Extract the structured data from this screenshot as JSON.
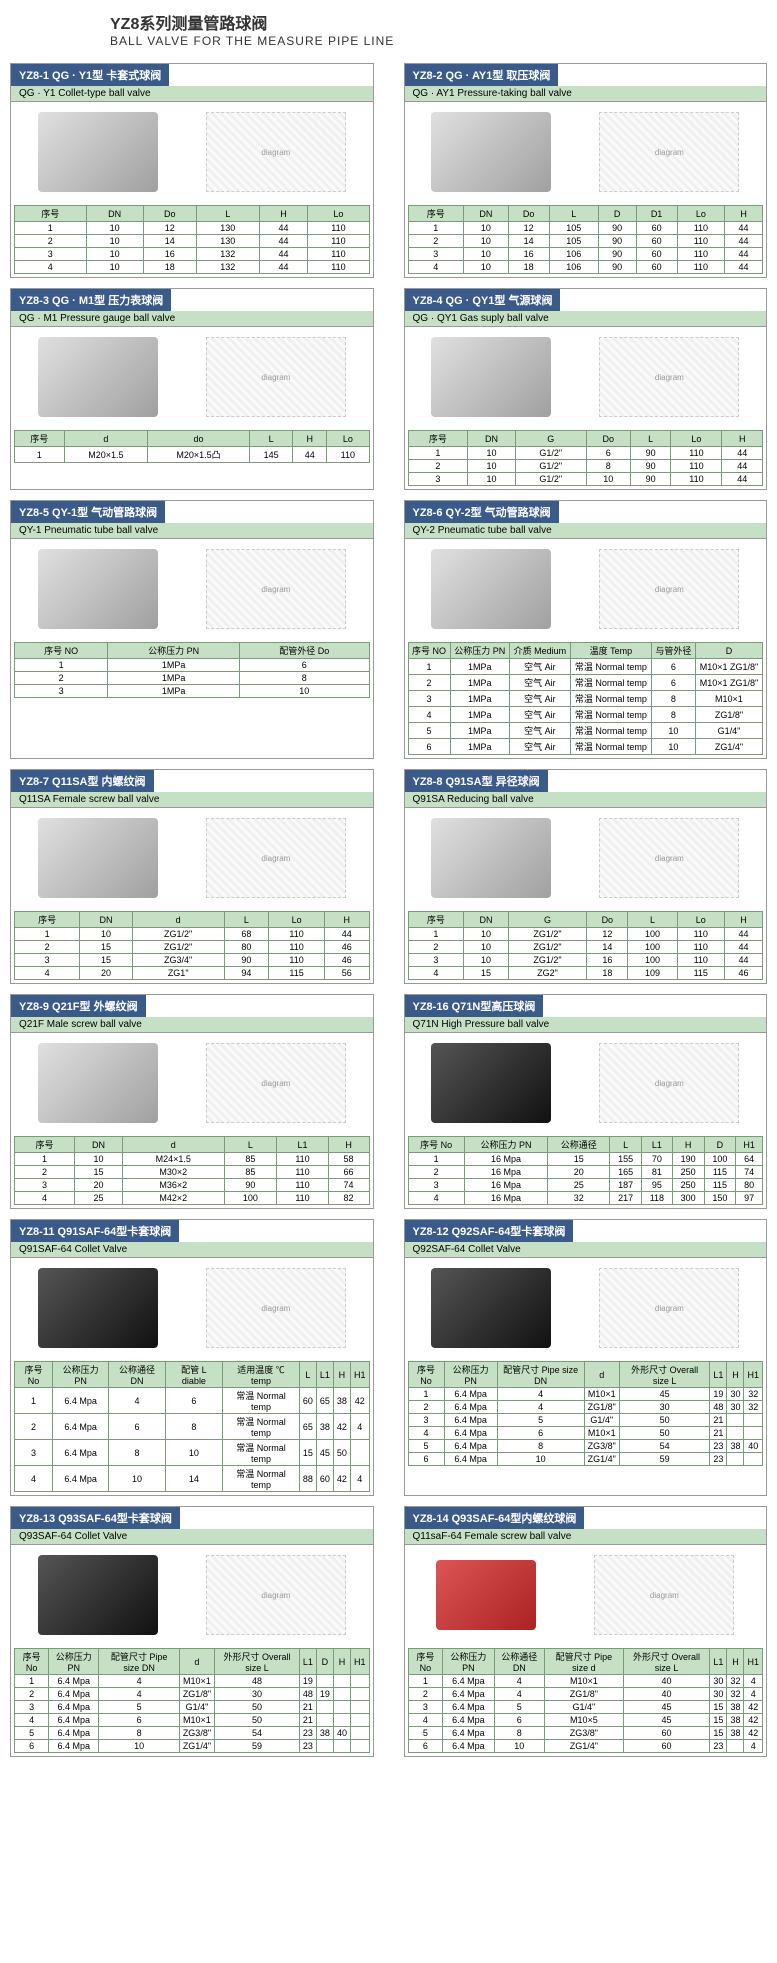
{
  "title": {
    "cn": "YZ8系列测量管路球阀",
    "en": "BALL VALVE FOR THE MEASURE PIPE LINE"
  },
  "items": [
    {
      "header": "YZ8-1 QG · Y1型 卡套式球阀",
      "subtitle": "QG · Y1 Collet-type ball valve",
      "photo_style": "",
      "table": {
        "headers": [
          "序号",
          "DN",
          "Do",
          "L",
          "H",
          "Lo"
        ],
        "rows": [
          [
            "1",
            "10",
            "12",
            "130",
            "44",
            "110"
          ],
          [
            "2",
            "10",
            "14",
            "130",
            "44",
            "110"
          ],
          [
            "3",
            "10",
            "16",
            "132",
            "44",
            "110"
          ],
          [
            "4",
            "10",
            "18",
            "132",
            "44",
            "110"
          ]
        ]
      }
    },
    {
      "header": "YZ8-2 QG · AY1型 取压球阀",
      "subtitle": "QG · AY1 Pressure-taking ball valve",
      "photo_style": "",
      "table": {
        "headers": [
          "序号",
          "DN",
          "Do",
          "L",
          "D",
          "D1",
          "Lo",
          "H"
        ],
        "rows": [
          [
            "1",
            "10",
            "12",
            "105",
            "90",
            "60",
            "110",
            "44"
          ],
          [
            "2",
            "10",
            "14",
            "105",
            "90",
            "60",
            "110",
            "44"
          ],
          [
            "3",
            "10",
            "16",
            "106",
            "90",
            "60",
            "110",
            "44"
          ],
          [
            "4",
            "10",
            "18",
            "106",
            "90",
            "60",
            "110",
            "44"
          ]
        ]
      }
    },
    {
      "header": "YZ8-3 QG · M1型 压力表球阀",
      "subtitle": "QG · M1 Pressure gauge ball valve",
      "photo_style": "",
      "table": {
        "headers": [
          "序号",
          "d",
          "do",
          "L",
          "H",
          "Lo"
        ],
        "rows": [
          [
            "1",
            "M20×1.5",
            "M20×1.5凸",
            "145",
            "44",
            "110"
          ]
        ]
      }
    },
    {
      "header": "YZ8-4 QG · QY1型 气源球阀",
      "subtitle": "QG · QY1 Gas suply ball valve",
      "photo_style": "",
      "table": {
        "headers": [
          "序号",
          "DN",
          "G",
          "Do",
          "L",
          "Lo",
          "H"
        ],
        "rows": [
          [
            "1",
            "10",
            "G1/2\"",
            "6",
            "90",
            "110",
            "44"
          ],
          [
            "2",
            "10",
            "G1/2\"",
            "8",
            "90",
            "110",
            "44"
          ],
          [
            "3",
            "10",
            "G1/2\"",
            "10",
            "90",
            "110",
            "44"
          ]
        ]
      }
    },
    {
      "header": "YZ8-5 QY-1型 气动管路球阀",
      "subtitle": "QY-1 Pneumatic tube ball valve",
      "photo_style": "",
      "table": {
        "headers": [
          "序号 NO",
          "公称压力 PN",
          "配管外径 Do"
        ],
        "rows": [
          [
            "1",
            "1MPa",
            "6"
          ],
          [
            "2",
            "1MPa",
            "8"
          ],
          [
            "3",
            "1MPa",
            "10"
          ]
        ]
      }
    },
    {
      "header": "YZ8-6 QY-2型 气动管路球阀",
      "subtitle": "QY-2 Pneumatic tube ball valve",
      "photo_style": "",
      "table": {
        "headers": [
          "序号 NO",
          "公称压力 PN",
          "介质 Medium",
          "温度 Temp",
          "与管外径",
          "D"
        ],
        "rows": [
          [
            "1",
            "1MPa",
            "空气 Air",
            "常温 Normal temp",
            "6",
            "M10×1 ZG1/8\""
          ],
          [
            "2",
            "1MPa",
            "空气 Air",
            "常温 Normal temp",
            "6",
            "M10×1 ZG1/8\""
          ],
          [
            "3",
            "1MPa",
            "空气 Air",
            "常温 Normal temp",
            "8",
            "M10×1"
          ],
          [
            "4",
            "1MPa",
            "空气 Air",
            "常温 Normal temp",
            "8",
            "ZG1/8\""
          ],
          [
            "5",
            "1MPa",
            "空气 Air",
            "常温 Normal temp",
            "10",
            "G1/4\""
          ],
          [
            "6",
            "1MPa",
            "空气 Air",
            "常温 Normal temp",
            "10",
            "ZG1/4\""
          ]
        ]
      }
    },
    {
      "header": "YZ8-7 Q11SA型 内螺纹阀",
      "subtitle": "Q11SA Female screw ball valve",
      "photo_style": "",
      "table": {
        "headers": [
          "序号",
          "DN",
          "d",
          "L",
          "Lo",
          "H"
        ],
        "rows": [
          [
            "1",
            "10",
            "ZG1/2\"",
            "68",
            "110",
            "44"
          ],
          [
            "2",
            "15",
            "ZG1/2\"",
            "80",
            "110",
            "46"
          ],
          [
            "3",
            "15",
            "ZG3/4\"",
            "90",
            "110",
            "46"
          ],
          [
            "4",
            "20",
            "ZG1\"",
            "94",
            "115",
            "56"
          ]
        ]
      }
    },
    {
      "header": "YZ8-8 Q91SA型 异径球阀",
      "subtitle": "Q91SA Reducing ball valve",
      "photo_style": "",
      "table": {
        "headers": [
          "序号",
          "DN",
          "G",
          "Do",
          "L",
          "Lo",
          "H"
        ],
        "rows": [
          [
            "1",
            "10",
            "ZG1/2\"",
            "12",
            "100",
            "110",
            "44"
          ],
          [
            "2",
            "10",
            "ZG1/2\"",
            "14",
            "100",
            "110",
            "44"
          ],
          [
            "3",
            "10",
            "ZG1/2\"",
            "16",
            "100",
            "110",
            "44"
          ],
          [
            "4",
            "15",
            "ZG2\"",
            "18",
            "109",
            "115",
            "46"
          ]
        ]
      }
    },
    {
      "header": "YZ8-9 Q21F型 外螺纹阀",
      "subtitle": "Q21F Male screw ball valve",
      "photo_style": "",
      "table": {
        "headers": [
          "序号",
          "DN",
          "d",
          "L",
          "L1",
          "H"
        ],
        "rows": [
          [
            "1",
            "10",
            "M24×1.5",
            "85",
            "110",
            "58"
          ],
          [
            "2",
            "15",
            "M30×2",
            "85",
            "110",
            "66"
          ],
          [
            "3",
            "20",
            "M36×2",
            "90",
            "110",
            "74"
          ],
          [
            "4",
            "25",
            "M42×2",
            "100",
            "110",
            "82"
          ]
        ]
      }
    },
    {
      "header": "YZ8-16 Q71N型高压球阀",
      "subtitle": "Q71N High Pressure ball valve",
      "photo_style": "black",
      "table": {
        "headers": [
          "序号 No",
          "公称压力 PN",
          "公称通径",
          "L",
          "L1",
          "H",
          "D",
          "H1"
        ],
        "rows": [
          [
            "1",
            "16 Mpa",
            "15",
            "155",
            "70",
            "190",
            "100",
            "64"
          ],
          [
            "2",
            "16 Mpa",
            "20",
            "165",
            "81",
            "250",
            "115",
            "74"
          ],
          [
            "3",
            "16 Mpa",
            "25",
            "187",
            "95",
            "250",
            "115",
            "80"
          ],
          [
            "4",
            "16 Mpa",
            "32",
            "217",
            "118",
            "300",
            "150",
            "97"
          ]
        ]
      }
    },
    {
      "header": "YZ8-11 Q91SAF-64型卡套球阀",
      "subtitle": "Q91SAF-64 Collet Valve",
      "photo_style": "black",
      "table": {
        "headers": [
          "序号 No",
          "公称压力 PN",
          "公称通径 DN",
          "配管 L diable",
          "适用温度 ℃ temp",
          "L",
          "L1",
          "H",
          "H1"
        ],
        "rows": [
          [
            "1",
            "6.4 Mpa",
            "4",
            "6",
            "常温 Normal temp",
            "60",
            "65",
            "38",
            "42"
          ],
          [
            "2",
            "6.4 Mpa",
            "6",
            "8",
            "常温 Normal temp",
            "65",
            "38",
            "42",
            "4"
          ],
          [
            "3",
            "6.4 Mpa",
            "8",
            "10",
            "常温 Normal temp",
            "15",
            "45",
            "50",
            ""
          ],
          [
            "4",
            "6.4 Mpa",
            "10",
            "14",
            "常温 Normal temp",
            "88",
            "60",
            "42",
            "4"
          ]
        ]
      }
    },
    {
      "header": "YZ8-12 Q92SAF-64型卡套球阀",
      "subtitle": "Q92SAF-64 Collet Valve",
      "photo_style": "black",
      "table": {
        "headers": [
          "序号 No",
          "公称压力 PN",
          "配管尺寸 Pipe size DN",
          "d",
          "外形尺寸 Overall size L",
          "L1",
          "H",
          "H1"
        ],
        "rows": [
          [
            "1",
            "6.4 Mpa",
            "4",
            "M10×1",
            "45",
            "19",
            "30",
            "32"
          ],
          [
            "2",
            "6.4 Mpa",
            "4",
            "ZG1/8\"",
            "30",
            "48",
            "30",
            "32"
          ],
          [
            "3",
            "6.4 Mpa",
            "5",
            "G1/4\"",
            "50",
            "21",
            "",
            ""
          ],
          [
            "4",
            "6.4 Mpa",
            "6",
            "M10×1",
            "50",
            "21",
            "",
            ""
          ],
          [
            "5",
            "6.4 Mpa",
            "8",
            "ZG3/8\"",
            "54",
            "23",
            "38",
            "40"
          ],
          [
            "6",
            "6.4 Mpa",
            "10",
            "ZG1/4\"",
            "59",
            "23",
            "",
            ""
          ]
        ]
      }
    },
    {
      "header": "YZ8-13 Q93SAF-64型卡套球阀",
      "subtitle": "Q93SAF-64 Collet Valve",
      "photo_style": "black",
      "table": {
        "headers": [
          "序号 No",
          "公称压力 PN",
          "配管尺寸 Pipe size DN",
          "d",
          "外形尺寸 Overall size L",
          "L1",
          "D",
          "H",
          "H1"
        ],
        "rows": [
          [
            "1",
            "6.4 Mpa",
            "4",
            "M10×1",
            "48",
            "19",
            "",
            "",
            ""
          ],
          [
            "2",
            "6.4 Mpa",
            "4",
            "ZG1/8\"",
            "30",
            "48",
            "19",
            "",
            ""
          ],
          [
            "3",
            "6.4 Mpa",
            "5",
            "G1/4\"",
            "50",
            "21",
            "",
            "",
            ""
          ],
          [
            "4",
            "6.4 Mpa",
            "6",
            "M10×1",
            "50",
            "21",
            "",
            "",
            ""
          ],
          [
            "5",
            "6.4 Mpa",
            "8",
            "ZG3/8\"",
            "54",
            "23",
            "38",
            "40",
            ""
          ],
          [
            "6",
            "6.4 Mpa",
            "10",
            "ZG1/4\"",
            "59",
            "23",
            "",
            "",
            ""
          ]
        ]
      }
    },
    {
      "header": "YZ8-14 Q93SAF-64型内螺纹球阀",
      "subtitle": "Q11saF-64 Female screw ball valve",
      "photo_style": "red",
      "table": {
        "headers": [
          "序号 No",
          "公称压力 PN",
          "公称通径 DN",
          "配管尺寸 Pipe size d",
          "外形尺寸 Overall size L",
          "L1",
          "H",
          "H1"
        ],
        "rows": [
          [
            "1",
            "6.4 Mpa",
            "4",
            "M10×1",
            "40",
            "30",
            "32",
            "4"
          ],
          [
            "2",
            "6.4 Mpa",
            "4",
            "ZG1/8\"",
            "40",
            "30",
            "32",
            "4"
          ],
          [
            "3",
            "6.4 Mpa",
            "5",
            "G1/4\"",
            "45",
            "15",
            "38",
            "42"
          ],
          [
            "4",
            "6.4 Mpa",
            "6",
            "M10×5",
            "45",
            "15",
            "38",
            "42"
          ],
          [
            "5",
            "6.4 Mpa",
            "8",
            "ZG3/8\"",
            "60",
            "15",
            "38",
            "42"
          ],
          [
            "6",
            "6.4 Mpa",
            "10",
            "ZG1/4\"",
            "60",
            "23",
            "",
            "4"
          ]
        ]
      }
    }
  ]
}
